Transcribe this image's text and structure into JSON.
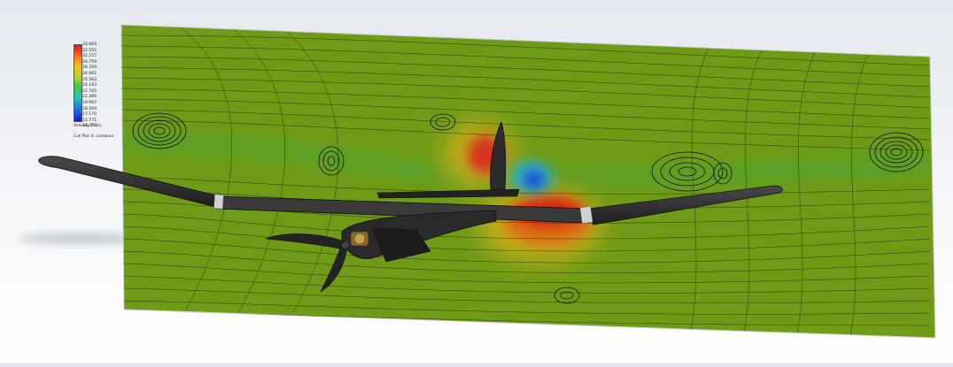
{
  "legend": {
    "max_label": "33.964",
    "ticks": [
      "32.555",
      "31.157",
      "29.759",
      "28.359",
      "26.961",
      "25.562",
      "24.163",
      "22.765",
      "21.366",
      "19.967",
      "18.569",
      "17.170",
      "15.771",
      "14.373"
    ],
    "title": "Velocity [m/s]",
    "subtitle": "Cut Plot 4: contours"
  },
  "colors": {
    "background": "#eef0f3",
    "flow_field": "#6b9a14",
    "streamline": "#1a1f0a",
    "aircraft_body": "#2a2a2a",
    "high_velocity": "#d92116",
    "low_velocity": "#1f3fd8"
  },
  "scene": {
    "objects": [
      "cut-plot-plane",
      "aircraft-model",
      "propeller",
      "motor-mount"
    ]
  }
}
